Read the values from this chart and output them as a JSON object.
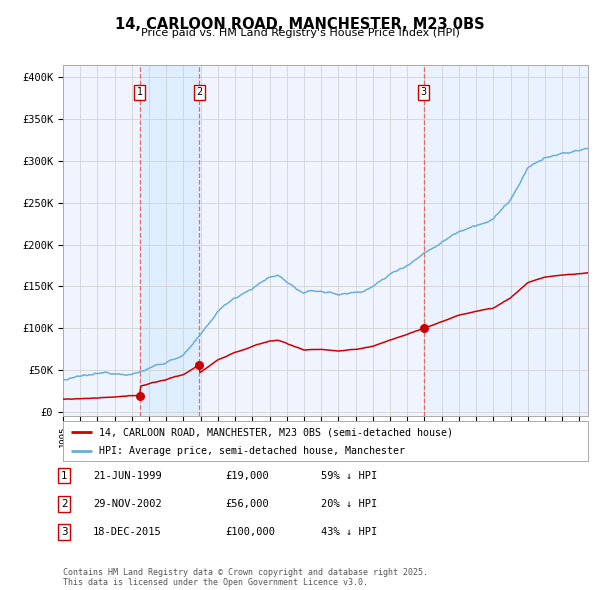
{
  "title": "14, CARLOON ROAD, MANCHESTER, M23 0BS",
  "subtitle": "Price paid vs. HM Land Registry's House Price Index (HPI)",
  "ylabel_ticks": [
    "£0",
    "£50K",
    "£100K",
    "£150K",
    "£200K",
    "£250K",
    "£300K",
    "£350K",
    "£400K"
  ],
  "ytick_vals": [
    0,
    50000,
    100000,
    150000,
    200000,
    250000,
    300000,
    350000,
    400000
  ],
  "ylim": [
    -5000,
    415000
  ],
  "sale_dates_num": [
    1999.47,
    2002.91,
    2015.96
  ],
  "sale_prices": [
    19000,
    56000,
    100000
  ],
  "sale_labels": [
    "1",
    "2",
    "3"
  ],
  "legend_red": "14, CARLOON ROAD, MANCHESTER, M23 0BS (semi-detached house)",
  "legend_blue": "HPI: Average price, semi-detached house, Manchester",
  "table_rows": [
    [
      "1",
      "21-JUN-1999",
      "£19,000",
      "59% ↓ HPI"
    ],
    [
      "2",
      "29-NOV-2002",
      "£56,000",
      "20% ↓ HPI"
    ],
    [
      "3",
      "18-DEC-2015",
      "£100,000",
      "43% ↓ HPI"
    ]
  ],
  "footnote": "Contains HM Land Registry data © Crown copyright and database right 2025.\nThis data is licensed under the Open Government Licence v3.0.",
  "red_color": "#cc0000",
  "blue_color": "#6baed6",
  "dashed_red_color": "#e06060",
  "shade_color": "#ddeeff",
  "grid_color": "#cccccc",
  "bg_color": "#f0f4ff",
  "xstart": 1995.0,
  "xend": 2025.5
}
